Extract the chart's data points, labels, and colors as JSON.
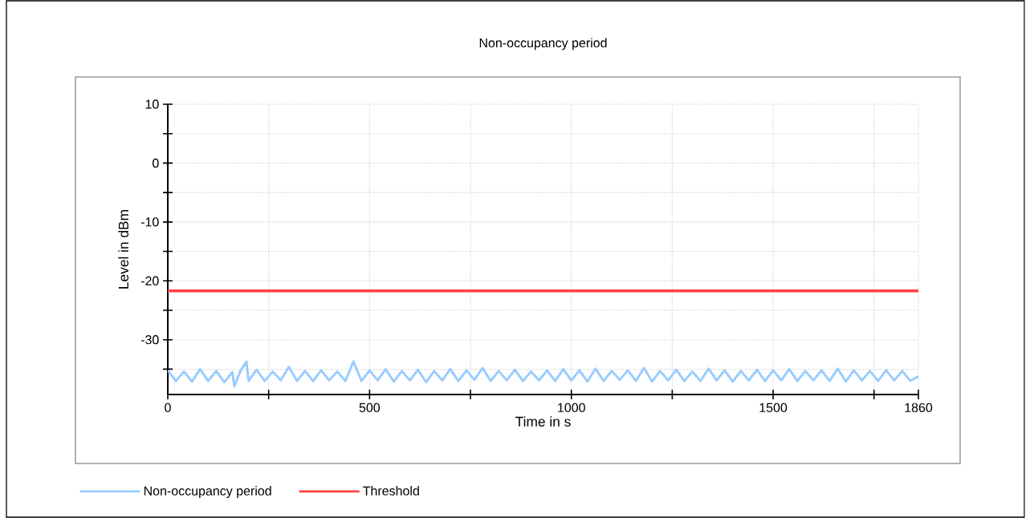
{
  "chart_data": {
    "type": "line",
    "title": "Non-occupancy period",
    "xlabel": "Time in s",
    "ylabel": "Level in dBm",
    "x": [
      0,
      20,
      40,
      60,
      80,
      100,
      120,
      140,
      160,
      165,
      180,
      195,
      200,
      220,
      240,
      260,
      280,
      300,
      320,
      340,
      360,
      380,
      400,
      420,
      440,
      460,
      480,
      500,
      520,
      540,
      560,
      580,
      600,
      620,
      640,
      660,
      680,
      700,
      720,
      740,
      760,
      780,
      800,
      820,
      840,
      860,
      880,
      900,
      920,
      940,
      960,
      980,
      1000,
      1020,
      1040,
      1060,
      1080,
      1100,
      1120,
      1140,
      1160,
      1180,
      1200,
      1220,
      1240,
      1260,
      1280,
      1300,
      1320,
      1340,
      1360,
      1380,
      1400,
      1420,
      1440,
      1460,
      1480,
      1500,
      1520,
      1540,
      1560,
      1580,
      1600,
      1620,
      1640,
      1660,
      1680,
      1700,
      1720,
      1740,
      1760,
      1780,
      1800,
      1820,
      1840,
      1860
    ],
    "series": [
      {
        "name": "Non-occupancy period",
        "color": "#99ccff",
        "values": [
          -35.2,
          -37.0,
          -35.4,
          -37.1,
          -35.0,
          -37.0,
          -35.3,
          -37.2,
          -35.5,
          -37.9,
          -35.3,
          -33.7,
          -37.0,
          -35.1,
          -37.0,
          -35.4,
          -36.9,
          -34.6,
          -37.0,
          -35.3,
          -37.0,
          -35.2,
          -36.9,
          -35.4,
          -37.0,
          -33.7,
          -37.0,
          -35.2,
          -36.9,
          -35.0,
          -37.1,
          -35.3,
          -36.9,
          -35.1,
          -37.2,
          -35.3,
          -36.9,
          -35.0,
          -37.0,
          -35.2,
          -36.8,
          -34.8,
          -37.0,
          -35.3,
          -36.9,
          -35.1,
          -37.0,
          -35.4,
          -36.9,
          -35.2,
          -37.0,
          -35.0,
          -36.9,
          -35.2,
          -37.1,
          -34.9,
          -37.0,
          -35.3,
          -36.8,
          -35.2,
          -37.0,
          -34.8,
          -37.1,
          -35.3,
          -36.9,
          -35.1,
          -37.0,
          -35.4,
          -37.0,
          -34.9,
          -36.9,
          -35.2,
          -37.1,
          -35.3,
          -36.9,
          -35.1,
          -37.0,
          -35.2,
          -36.9,
          -35.0,
          -37.0,
          -35.3,
          -36.9,
          -35.2,
          -37.0,
          -34.9,
          -37.1,
          -35.2,
          -36.9,
          -35.3,
          -37.0,
          -35.2,
          -36.9,
          -35.3,
          -37.0,
          -36.2
        ]
      }
    ],
    "ref_lines": [
      {
        "axis": "y",
        "value": -21.7,
        "label": "Threshold",
        "color": "#ff4040"
      }
    ],
    "xlim": [
      0,
      1860
    ],
    "ylim": [
      -39.3,
      10
    ],
    "xticks": [
      0,
      {
        "value": 250,
        "label": null
      },
      500,
      {
        "value": 750,
        "label": null
      },
      1000,
      {
        "value": 1250,
        "label": null
      },
      1500,
      {
        "value": 1750,
        "label": null
      },
      1860
    ],
    "yticks": [
      {
        "value": -35,
        "label": null
      },
      -30,
      {
        "value": -25,
        "label": null
      },
      -20,
      {
        "value": -15,
        "label": null
      },
      -10,
      {
        "value": -5,
        "label": null
      },
      0,
      {
        "value": 5,
        "label": null
      },
      10
    ],
    "grid": true,
    "legend": "bottom left",
    "line_style": "solid",
    "marker": "none"
  }
}
